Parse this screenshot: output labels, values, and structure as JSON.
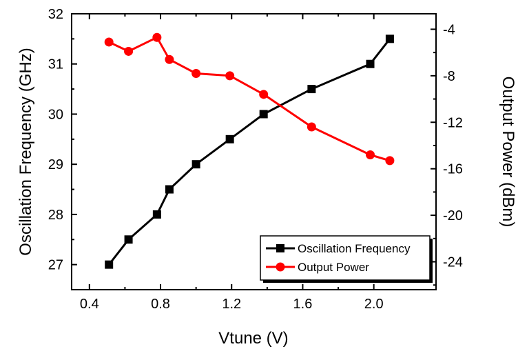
{
  "chart_data": {
    "type": "line",
    "title": "",
    "xlabel": "Vtune (V)",
    "ylabel": "Oscillation Frequency (GHz)",
    "y2label": "Output Power (dBm)",
    "xlim": [
      0.3,
      2.35
    ],
    "ylim": [
      26.5,
      32
    ],
    "y2lim": [
      -26.4,
      -2.67
    ],
    "x_ticks": [
      "0.4",
      "0.8",
      "1.2",
      "1.6",
      "2.0"
    ],
    "y_ticks": [
      "27",
      "28",
      "29",
      "30",
      "31",
      "32"
    ],
    "y2_ticks": [
      "-4",
      "-8",
      "-12",
      "-16",
      "-20",
      "-24"
    ],
    "legend_position": "bottom-right",
    "series": [
      {
        "name": "Oscillation Frequency",
        "axis": "left",
        "color": "#000000",
        "marker": "square",
        "x": [
          0.51,
          0.62,
          0.78,
          0.85,
          1.0,
          1.19,
          1.38,
          1.65,
          1.98,
          2.09
        ],
        "y": [
          27.0,
          27.5,
          28.0,
          28.5,
          29.0,
          29.5,
          30.0,
          30.5,
          31.0,
          31.5
        ]
      },
      {
        "name": "Output Power",
        "axis": "right",
        "color": "#ff0000",
        "marker": "circle",
        "x": [
          0.51,
          0.62,
          0.78,
          0.85,
          1.0,
          1.19,
          1.38,
          1.65,
          1.98,
          2.09
        ],
        "y": [
          -5.1,
          -5.9,
          -4.7,
          -6.6,
          -7.8,
          -8.0,
          -9.6,
          -12.4,
          -14.8,
          -15.3
        ]
      }
    ]
  }
}
